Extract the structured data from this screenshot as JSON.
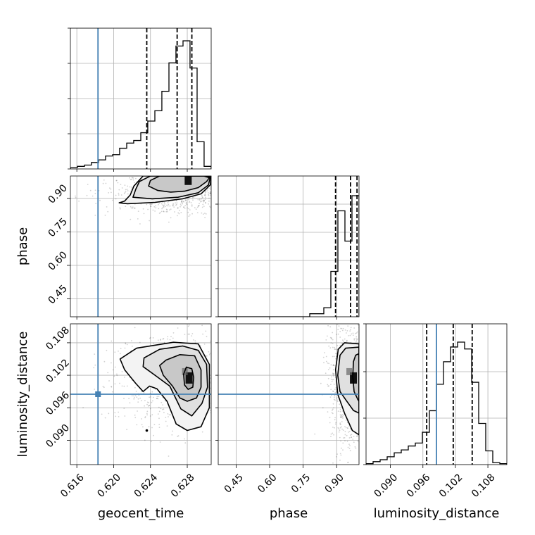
{
  "chart_data": {
    "type": "corner",
    "parameters": [
      "geocent_time",
      "phase",
      "luminosity_distance"
    ],
    "axis_labels": {
      "x": [
        "geocent_time",
        "phase",
        "luminosity_distance"
      ],
      "y": [
        "phase",
        "luminosity_distance"
      ]
    },
    "truths": {
      "geocent_time": 0.6183,
      "phase": null,
      "luminosity_distance": 0.0985
    },
    "truth_color": "#4682b4",
    "grid": true,
    "ranges": {
      "geocent_time": [
        0.6153,
        0.6306
      ],
      "phase": [
        0.37,
        1.0
      ],
      "luminosity_distance": [
        0.0855,
        0.1115
      ]
    },
    "ticks": {
      "geocent_time": {
        "values": [
          0.616,
          0.62,
          0.624,
          0.628
        ],
        "labels": [
          "0.616",
          "0.620",
          "0.624",
          "0.628"
        ]
      },
      "phase": {
        "values": [
          0.45,
          0.6,
          0.75,
          0.9
        ],
        "labels": [
          "0.45",
          "0.60",
          "0.75",
          "0.90"
        ]
      },
      "luminosity_distance": {
        "values": [
          0.09,
          0.096,
          0.102,
          0.108
        ],
        "labels": [
          "0.090",
          "0.096",
          "0.102",
          "0.108"
        ]
      }
    },
    "histograms": [
      {
        "parameter": "geocent_time",
        "bin_edges": [
          0.6153,
          0.61606,
          0.61683,
          0.61759,
          0.61836,
          0.61912,
          0.61989,
          0.62065,
          0.62142,
          0.62218,
          0.62295,
          0.62371,
          0.62448,
          0.62524,
          0.62601,
          0.62677,
          0.62754,
          0.6283,
          0.62907,
          0.62983,
          0.6306
        ],
        "counts": [
          1,
          2,
          3,
          5,
          7,
          10,
          11,
          16,
          20,
          22,
          28,
          37,
          45,
          60,
          82,
          95,
          99,
          78,
          21,
          2
        ],
        "quantiles": [
          0.6236,
          0.6269,
          0.6285
        ]
      },
      {
        "parameter": "phase",
        "bin_edges": [
          0.37,
          0.4015,
          0.433,
          0.4645,
          0.496,
          0.5275,
          0.559,
          0.5905,
          0.622,
          0.6535,
          0.685,
          0.7165,
          0.748,
          0.7795,
          0.811,
          0.8425,
          0.874,
          0.9055,
          0.937,
          0.9685,
          1.0
        ],
        "counts": [
          0,
          0,
          0,
          0,
          0,
          0,
          0,
          0,
          0,
          0,
          0,
          0,
          0,
          1,
          1,
          3,
          15,
          35,
          25,
          40
        ],
        "quantiles": [
          0.895,
          0.962,
          0.991
        ]
      },
      {
        "parameter": "luminosity_distance",
        "bin_edges": [
          0.0855,
          0.0868,
          0.0881,
          0.0894,
          0.0907,
          0.092,
          0.0933,
          0.0946,
          0.0959,
          0.0972,
          0.0985,
          0.0998,
          0.1011,
          0.1024,
          0.1037,
          0.105,
          0.1063,
          0.1076,
          0.1089,
          0.1102,
          0.1115
        ],
        "counts": [
          1,
          3,
          5,
          8,
          12,
          15,
          19,
          22,
          33,
          55,
          82,
          105,
          120,
          125,
          118,
          84,
          42,
          14,
          2,
          1
        ],
        "quantiles": [
          0.0967,
          0.1016,
          0.1051
        ]
      }
    ],
    "histogram_peak_fractions": [
      0.91,
      0.86,
      0.87
    ],
    "hist_ytick_fractions": [
      [
        0.0,
        0.25,
        0.5,
        0.75,
        1.0
      ],
      [
        0.0,
        0.2,
        0.4,
        0.6,
        0.8
      ],
      [
        0.0,
        0.33,
        0.66,
        1.0
      ]
    ],
    "joint_distributions": [
      {
        "x": "geocent_time",
        "y": "phase",
        "mode": [
          0.6281,
          0.985
        ],
        "contours": [
          [
            [
              0.6238,
              0.955
            ],
            [
              0.6248,
              0.935
            ],
            [
              0.6262,
              0.928
            ],
            [
              0.6277,
              0.932
            ],
            [
              0.6292,
              0.948
            ],
            [
              0.6301,
              0.975
            ],
            [
              0.6304,
              0.992
            ],
            [
              0.6298,
              1.0
            ],
            [
              0.625,
              1.0
            ],
            [
              0.624,
              0.98
            ]
          ],
          [
            [
              0.6221,
              0.905
            ],
            [
              0.6242,
              0.898
            ],
            [
              0.627,
              0.905
            ],
            [
              0.6292,
              0.925
            ],
            [
              0.6303,
              0.96
            ],
            [
              0.6305,
              0.995
            ],
            [
              0.6298,
              1.0
            ],
            [
              0.624,
              1.0
            ],
            [
              0.6228,
              0.975
            ],
            [
              0.6224,
              0.94
            ]
          ],
          [
            [
              0.6206,
              0.88
            ],
            [
              0.6215,
              0.876
            ],
            [
              0.6245,
              0.882
            ],
            [
              0.6275,
              0.898
            ],
            [
              0.6295,
              0.92
            ],
            [
              0.6305,
              0.96
            ],
            [
              0.6306,
              1.0
            ],
            [
              0.6232,
              1.0
            ],
            [
              0.6222,
              0.955
            ],
            [
              0.6218,
              0.915
            ],
            [
              0.6212,
              0.888
            ]
          ]
        ],
        "scatter_center": [
          0.6265,
          0.935
        ],
        "scatter_spread": [
          0.0035,
          0.05
        ]
      },
      {
        "x": "geocent_time",
        "y": "luminosity_distance",
        "mode": [
          0.6282,
          0.1015
        ],
        "contours": [
          [
            [
              0.6279,
              0.1035
            ],
            [
              0.6285,
              0.1032
            ],
            [
              0.6287,
              0.1016
            ],
            [
              0.6286,
              0.0998
            ],
            [
              0.6281,
              0.0994
            ],
            [
              0.6277,
              0.1002
            ],
            [
              0.6276,
              0.1022
            ]
          ],
          [
            [
              0.6257,
              0.1048
            ],
            [
              0.6272,
              0.1058
            ],
            [
              0.6288,
              0.1056
            ],
            [
              0.6295,
              0.103
            ],
            [
              0.6295,
              0.0998
            ],
            [
              0.629,
              0.0978
            ],
            [
              0.628,
              0.0972
            ],
            [
              0.6272,
              0.0978
            ],
            [
              0.6264,
              0.1
            ],
            [
              0.6254,
              0.102
            ],
            [
              0.625,
              0.1038
            ]
          ],
          [
            [
              0.6233,
              0.1052
            ],
            [
              0.625,
              0.1068
            ],
            [
              0.6275,
              0.1074
            ],
            [
              0.6292,
              0.1066
            ],
            [
              0.6301,
              0.104
            ],
            [
              0.6302,
              0.0998
            ],
            [
              0.6296,
              0.0968
            ],
            [
              0.6285,
              0.0945
            ],
            [
              0.6273,
              0.0958
            ],
            [
              0.6261,
              0.1
            ],
            [
              0.6245,
              0.102
            ],
            [
              0.6232,
              0.1036
            ]
          ],
          [
            [
              0.6207,
              0.105
            ],
            [
              0.6225,
              0.107
            ],
            [
              0.6265,
              0.1081
            ],
            [
              0.6292,
              0.1078
            ],
            [
              0.6304,
              0.104
            ],
            [
              0.6304,
              0.096
            ],
            [
              0.6295,
              0.0925
            ],
            [
              0.628,
              0.0918
            ],
            [
              0.6268,
              0.093
            ],
            [
              0.6258,
              0.0972
            ],
            [
              0.6247,
              0.0995
            ],
            [
              0.6239,
              0.1
            ],
            [
              0.6232,
              0.099
            ],
            [
              0.6224,
              0.1005
            ],
            [
              0.6212,
              0.103
            ]
          ]
        ],
        "isolated_point": [
          0.6236,
          0.0918
        ],
        "scatter_center": [
          0.6272,
          0.1012
        ],
        "scatter_spread": [
          0.0035,
          0.0045
        ]
      },
      {
        "x": "phase",
        "y": "luminosity_distance",
        "mode": [
          0.975,
          0.1015
        ],
        "contours": [
          [
            [
              1.0,
              0.106
            ],
            [
              0.985,
              0.1057
            ],
            [
              0.975,
              0.1045
            ],
            [
              0.972,
              0.1018
            ],
            [
              0.978,
              0.099
            ],
            [
              0.995,
              0.0975
            ],
            [
              1.0,
              0.0972
            ]
          ],
          [
            [
              1.0,
              0.1072
            ],
            [
              0.94,
              0.107
            ],
            [
              0.915,
              0.1057
            ],
            [
              0.905,
              0.102
            ],
            [
              0.915,
              0.099
            ],
            [
              0.94,
              0.0975
            ],
            [
              0.975,
              0.0955
            ],
            [
              1.0,
              0.095
            ]
          ],
          [
            [
              1.0,
              0.1078
            ],
            [
              0.935,
              0.108
            ],
            [
              0.907,
              0.1068
            ],
            [
              0.895,
              0.103
            ],
            [
              0.905,
              0.0985
            ],
            [
              0.935,
              0.095
            ],
            [
              0.97,
              0.0918
            ],
            [
              1.0,
              0.091
            ]
          ]
        ],
        "scatter_center": [
          0.955,
          0.1005
        ],
        "scatter_spread": [
          0.045,
          0.0055
        ]
      }
    ]
  }
}
